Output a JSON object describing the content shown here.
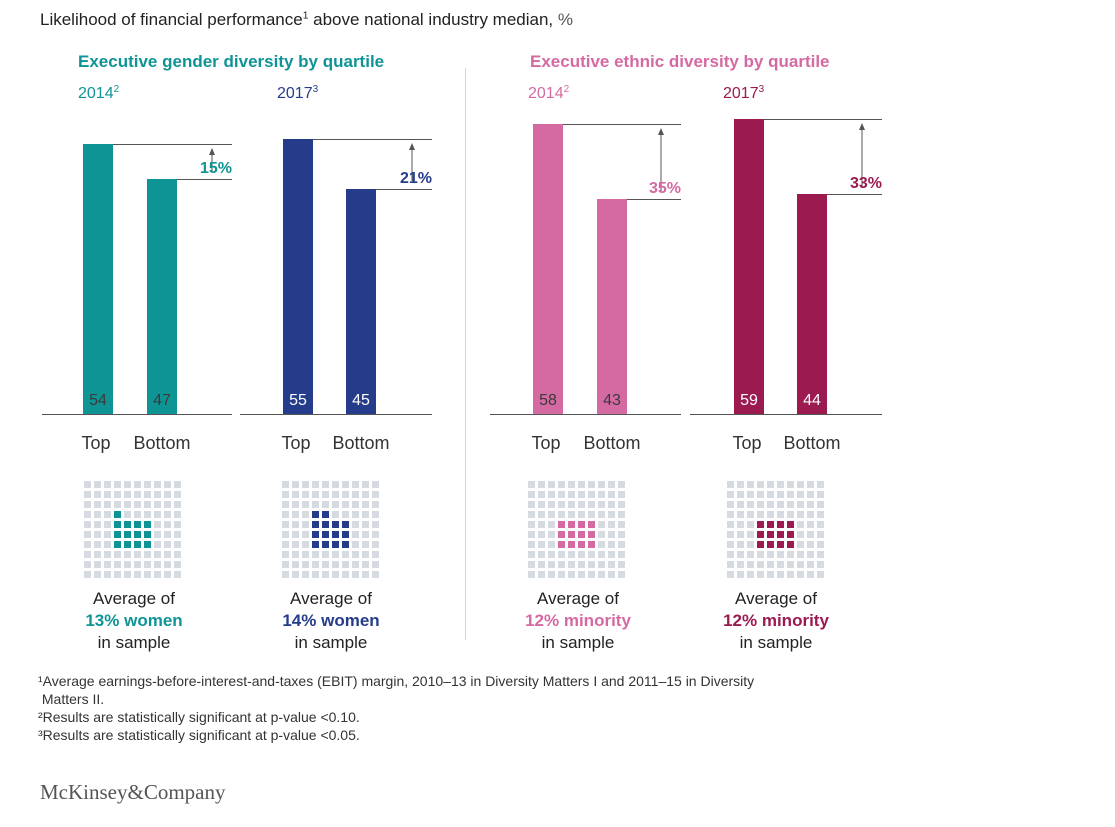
{
  "title": {
    "text": "Likelihood of financial performance",
    "sup": "1",
    "text2": " above national industry median,",
    "unit": " %"
  },
  "sections": [
    {
      "title": "Executive gender diversity by quartile",
      "color": "#0f9496"
    },
    {
      "title": "Executive ethnic diversity by quartile",
      "color": "#d56aa2"
    }
  ],
  "chart_data": [
    {
      "type": "bar",
      "title": "Executive gender diversity by quartile",
      "year": "2014",
      "year_note": "2",
      "categories": [
        "Top",
        "Bottom"
      ],
      "values": [
        54,
        47
      ],
      "difference": "15%",
      "color": "#0f9496",
      "sample_highlight": "13% women",
      "highlight_squares": 13
    },
    {
      "type": "bar",
      "title": "Executive gender diversity by quartile",
      "year": "2017",
      "year_note": "3",
      "categories": [
        "Top",
        "Bottom"
      ],
      "values": [
        55,
        45
      ],
      "difference": "21%",
      "color": "#253c8a",
      "sample_highlight": "14% women",
      "highlight_squares": 14
    },
    {
      "type": "bar",
      "title": "Executive ethnic diversity by quartile",
      "year": "2014",
      "year_note": "2",
      "categories": [
        "Top",
        "Bottom"
      ],
      "values": [
        58,
        43
      ],
      "difference": "35%",
      "color": "#d56aa2",
      "sample_highlight": "12% minority",
      "highlight_squares": 12
    },
    {
      "type": "bar",
      "title": "Executive ethnic diversity by quartile",
      "year": "2017",
      "year_note": "3",
      "categories": [
        "Top",
        "Bottom"
      ],
      "values": [
        59,
        44
      ],
      "difference": "33%",
      "color": "#9b1a4f",
      "sample_highlight": "12% minority",
      "highlight_squares": 12
    }
  ],
  "sample_text": {
    "line1": "Average of",
    "line3": "in sample"
  },
  "footnotes": [
    "¹Average earnings-before-interest-and-taxes (EBIT) margin, 2010–13 in Diversity Matters I and 2011–15 in Diversity",
    " Matters II.",
    "²Results are statistically significant at p-value <0.10.",
    "³Results are statistically significant at p-value <0.05."
  ],
  "logo": "McKinsey&Company"
}
